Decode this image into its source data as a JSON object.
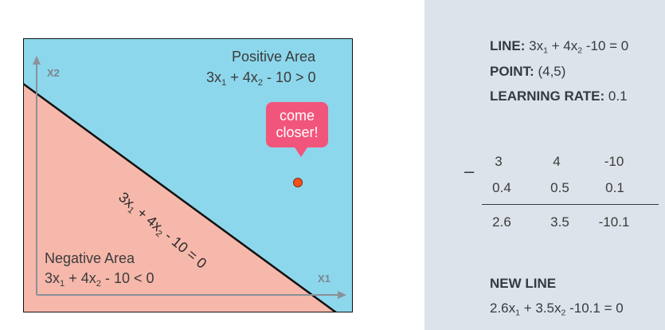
{
  "diagram": {
    "axes": {
      "y_label": "X2",
      "x_label": "X1"
    },
    "positive_area": {
      "title": "Positive Area",
      "eq_pre": "3x",
      "sub1": "1",
      "eq_mid": " + 4x",
      "sub2": "2",
      "eq_post": " - 10 > 0"
    },
    "negative_area": {
      "title": "Negative Area",
      "eq_pre": "3x",
      "sub1": "1",
      "eq_mid": " + 4x",
      "sub2": "2",
      "eq_post": " - 10 < 0"
    },
    "line_label": {
      "eq_pre": "3x",
      "sub1": "1",
      "eq_mid": " + 4x",
      "sub2": "2",
      "eq_post": " - 10 = 0"
    },
    "bubble": {
      "line1": "come",
      "line2": "closer!"
    },
    "colors": {
      "positive": "#8dd7ec",
      "negative": "#f6b8ab",
      "bubble": "#f2557b",
      "point": "#f4511e",
      "border": "#111111"
    }
  },
  "panel": {
    "line": {
      "label": "LINE:",
      "eq_pre": " 3x",
      "sub1": "1",
      "eq_mid": " + 4x",
      "sub2": "2",
      "eq_post": " -10 = 0"
    },
    "point": {
      "label": "POINT:",
      "value": " (4,5)"
    },
    "learning_rate": {
      "label": "LEARNING RATE:",
      "value": " 0.1"
    },
    "calc": {
      "operator": "–",
      "row1": [
        "3",
        "4",
        "-10"
      ],
      "row2": [
        "0.4",
        "0.5",
        "0.1"
      ],
      "result": [
        "2.6",
        "3.5",
        "-10.1"
      ]
    },
    "new_line": {
      "label": "NEW LINE",
      "eq_pre": "2.6x",
      "sub1": "1",
      "eq_mid": " + 3.5x",
      "sub2": "2",
      "eq_post": " -10.1 = 0"
    }
  }
}
